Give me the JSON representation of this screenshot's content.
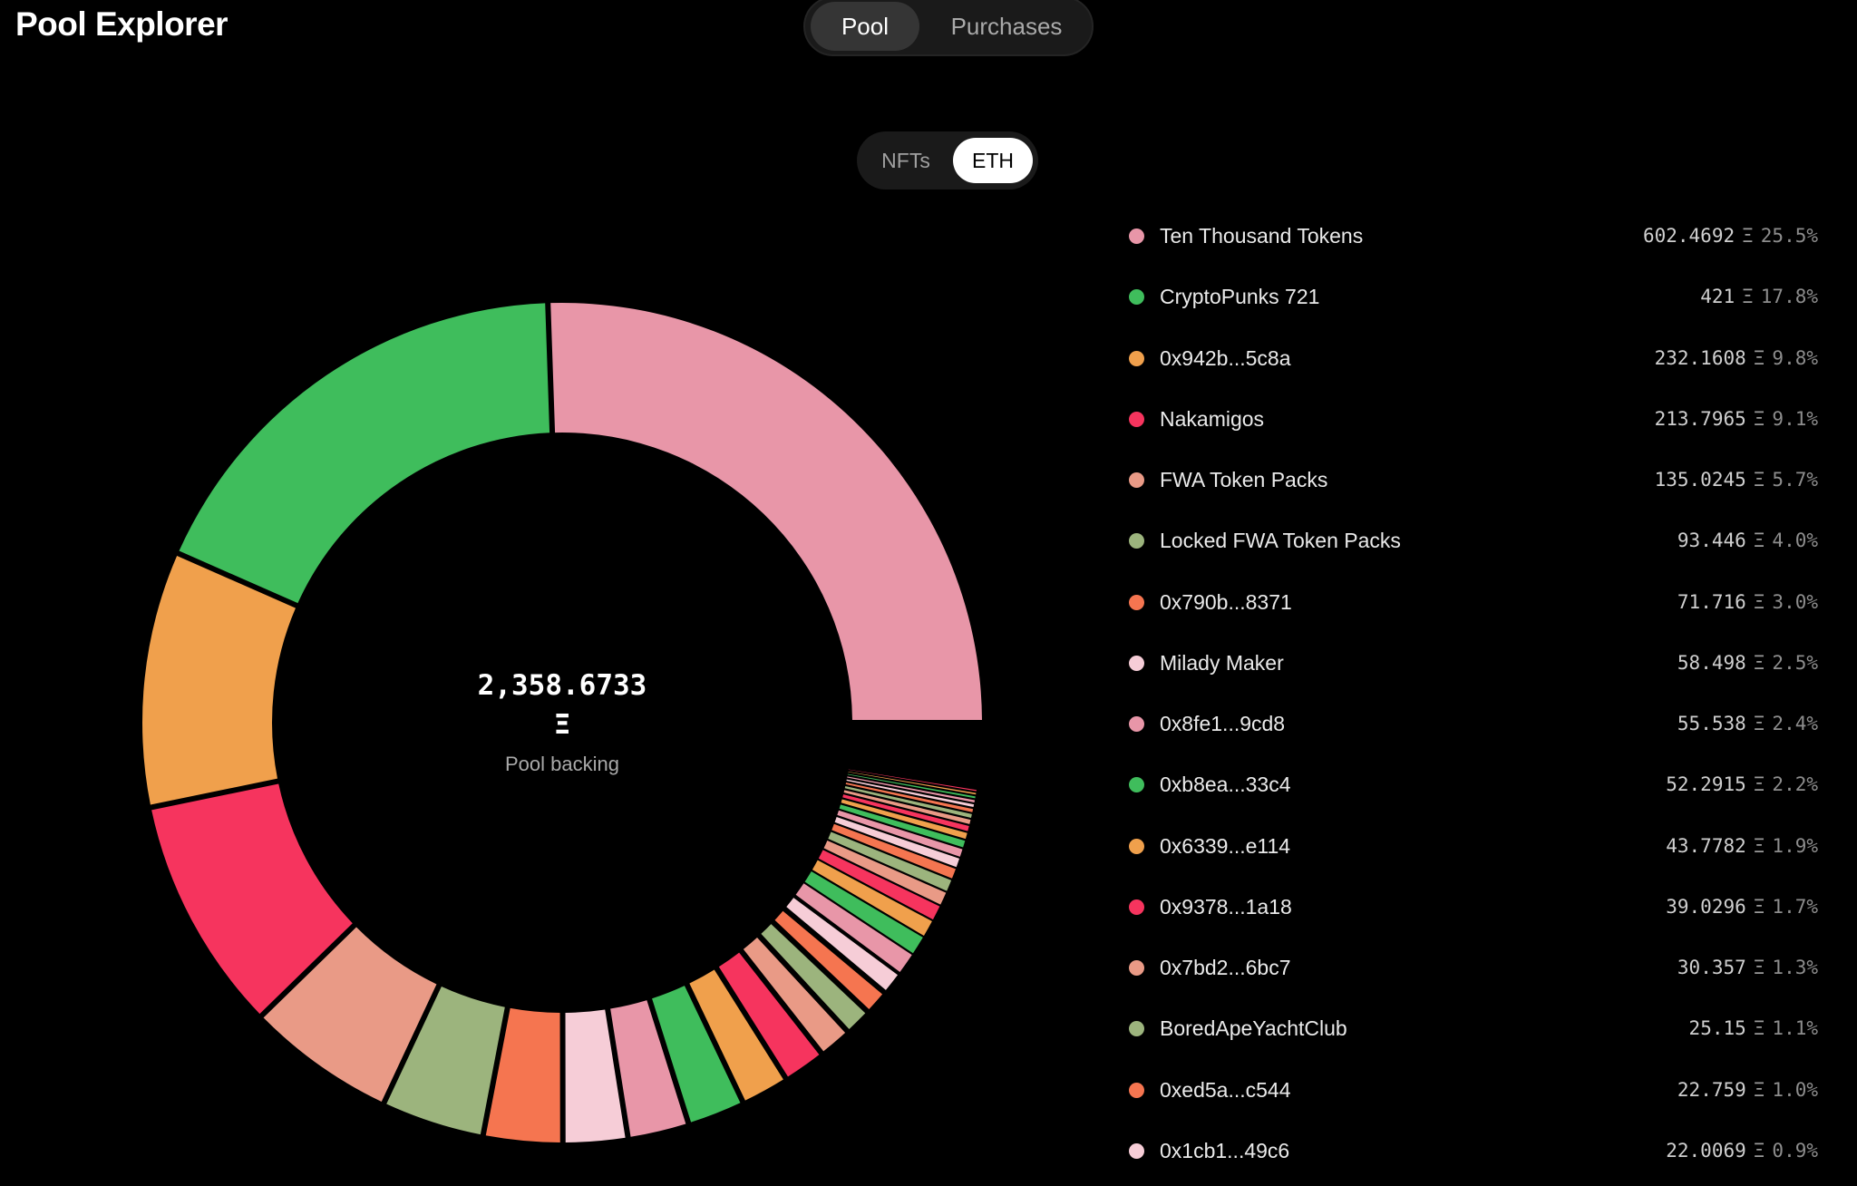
{
  "header": {
    "app_title": "Pool Explorer",
    "tabs": [
      {
        "label": "Pool",
        "active": true
      },
      {
        "label": "Purchases",
        "active": false
      }
    ]
  },
  "toggle": {
    "options": [
      {
        "label": "NFTs",
        "active": false
      },
      {
        "label": "ETH",
        "active": true
      }
    ]
  },
  "center": {
    "total": "2,358.6733",
    "unit": "Ξ",
    "caption": "Pool backing"
  },
  "chart_data": {
    "type": "pie",
    "style": "donut",
    "total": 2358.6733,
    "unit": "Ξ",
    "slices": [
      {
        "name": "Ten Thousand Tokens",
        "value": 602.4692,
        "percent": 25.5,
        "color": "#e896a8"
      },
      {
        "name": "CryptoPunks 721",
        "value": 421,
        "percent": 17.8,
        "color": "#3fbd5c"
      },
      {
        "name": "0x942b...5c8a",
        "value": 232.1608,
        "percent": 9.8,
        "color": "#f0a04c"
      },
      {
        "name": "Nakamigos",
        "value": 213.7965,
        "percent": 9.1,
        "color": "#f6345e"
      },
      {
        "name": "FWA Token Packs",
        "value": 135.0245,
        "percent": 5.7,
        "color": "#e99a86"
      },
      {
        "name": "Locked FWA Token Packs",
        "value": 93.446,
        "percent": 4.0,
        "color": "#9cb47d"
      },
      {
        "name": "0x790b...8371",
        "value": 71.716,
        "percent": 3.0,
        "color": "#f57550"
      },
      {
        "name": "Milady Maker",
        "value": 58.498,
        "percent": 2.5,
        "color": "#f6cdd7"
      },
      {
        "name": "0x8fe1...9cd8",
        "value": 55.538,
        "percent": 2.4,
        "color": "#e896a8"
      },
      {
        "name": "0xb8ea...33c4",
        "value": 52.2915,
        "percent": 2.2,
        "color": "#3fbd5c"
      },
      {
        "name": "0x6339...e114",
        "value": 43.7782,
        "percent": 1.9,
        "color": "#f0a04c"
      },
      {
        "name": "0x9378...1a18",
        "value": 39.0296,
        "percent": 1.7,
        "color": "#f6345e"
      },
      {
        "name": "0x7bd2...6bc7",
        "value": 30.357,
        "percent": 1.3,
        "color": "#e99a86"
      },
      {
        "name": "BoredApeYachtClub",
        "value": 25.15,
        "percent": 1.1,
        "color": "#9cb47d"
      },
      {
        "name": "0xed5a...c544",
        "value": 22.759,
        "percent": 1.0,
        "color": "#f57550"
      },
      {
        "name": "0x1cb1...49c6",
        "value": 22.0069,
        "percent": 0.9,
        "color": "#f6cdd7"
      }
    ],
    "palette_cycle": [
      "#e896a8",
      "#3fbd5c",
      "#f0a04c",
      "#f6345e",
      "#e99a86",
      "#9cb47d",
      "#f57550",
      "#f6cdd7"
    ]
  },
  "legend": {
    "rows": [
      {
        "name": "Ten Thousand Tokens",
        "value": "602.4692",
        "unit": "Ξ",
        "pct": "25.5%",
        "color": "#e896a8"
      },
      {
        "name": "CryptoPunks 721",
        "value": "421",
        "unit": "Ξ",
        "pct": "17.8%",
        "color": "#3fbd5c"
      },
      {
        "name": "0x942b...5c8a",
        "value": "232.1608",
        "unit": "Ξ",
        "pct": "9.8%",
        "color": "#f0a04c"
      },
      {
        "name": "Nakamigos",
        "value": "213.7965",
        "unit": "Ξ",
        "pct": "9.1%",
        "color": "#f6345e"
      },
      {
        "name": "FWA Token Packs",
        "value": "135.0245",
        "unit": "Ξ",
        "pct": "5.7%",
        "color": "#e99a86"
      },
      {
        "name": "Locked FWA Token Packs",
        "value": "93.446",
        "unit": "Ξ",
        "pct": "4.0%",
        "color": "#9cb47d"
      },
      {
        "name": "0x790b...8371",
        "value": "71.716",
        "unit": "Ξ",
        "pct": "3.0%",
        "color": "#f57550"
      },
      {
        "name": "Milady Maker",
        "value": "58.498",
        "unit": "Ξ",
        "pct": "2.5%",
        "color": "#f6cdd7"
      },
      {
        "name": "0x8fe1...9cd8",
        "value": "55.538",
        "unit": "Ξ",
        "pct": "2.4%",
        "color": "#e896a8"
      },
      {
        "name": "0xb8ea...33c4",
        "value": "52.2915",
        "unit": "Ξ",
        "pct": "2.2%",
        "color": "#3fbd5c"
      },
      {
        "name": "0x6339...e114",
        "value": "43.7782",
        "unit": "Ξ",
        "pct": "1.9%",
        "color": "#f0a04c"
      },
      {
        "name": "0x9378...1a18",
        "value": "39.0296",
        "unit": "Ξ",
        "pct": "1.7%",
        "color": "#f6345e"
      },
      {
        "name": "0x7bd2...6bc7",
        "value": "30.357",
        "unit": "Ξ",
        "pct": "1.3%",
        "color": "#e99a86"
      },
      {
        "name": "BoredApeYachtClub",
        "value": "25.15",
        "unit": "Ξ",
        "pct": "1.1%",
        "color": "#9cb47d"
      },
      {
        "name": "0xed5a...c544",
        "value": "22.759",
        "unit": "Ξ",
        "pct": "1.0%",
        "color": "#f57550"
      },
      {
        "name": "0x1cb1...49c6",
        "value": "22.0069",
        "unit": "Ξ",
        "pct": "0.9%",
        "color": "#f6cdd7"
      }
    ]
  }
}
